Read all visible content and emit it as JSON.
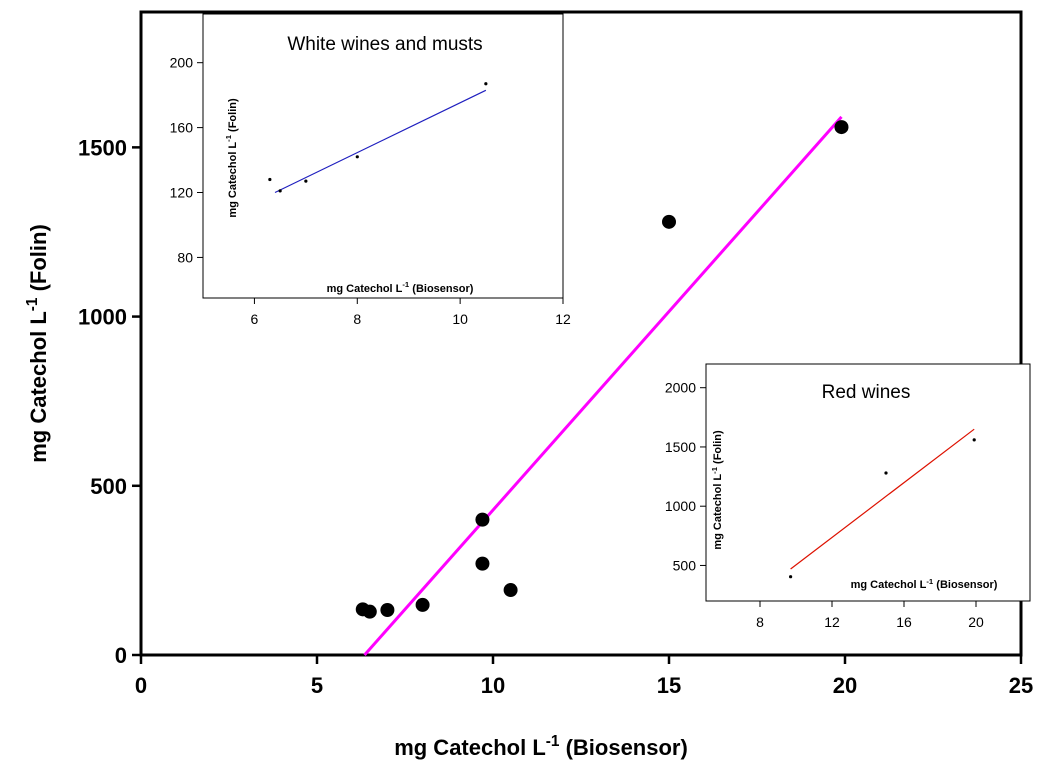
{
  "chart_data": [
    {
      "name": "main",
      "type": "scatter",
      "xlabel": {
        "pre": "mg Catechol L",
        "sup": "-1",
        "post": " (Biosensor)"
      },
      "ylabel": {
        "pre": "mg Catechol L",
        "sup": "-1",
        "post": " (Folin)"
      },
      "xlim": [
        0,
        25
      ],
      "ylim": [
        0,
        1900
      ],
      "xticks": [
        0,
        5,
        10,
        15,
        20,
        25
      ],
      "yticks": [
        0,
        500,
        1000,
        1500
      ],
      "points": [
        {
          "x": 6.3,
          "y": 135
        },
        {
          "x": 6.5,
          "y": 128
        },
        {
          "x": 7.0,
          "y": 133
        },
        {
          "x": 8.0,
          "y": 148
        },
        {
          "x": 9.7,
          "y": 270
        },
        {
          "x": 9.7,
          "y": 400
        },
        {
          "x": 10.5,
          "y": 192
        },
        {
          "x": 15.0,
          "y": 1280
        },
        {
          "x": 19.9,
          "y": 1560
        }
      ],
      "fit_line": {
        "x": [
          6.35,
          19.9
        ],
        "y": [
          0,
          1590
        ],
        "color": "#ff00ff"
      },
      "marker_color": "#000000"
    },
    {
      "name": "white-inset",
      "type": "scatter",
      "title": "White wines and musts",
      "xlabel": {
        "pre": "mg Catechol L",
        "sup": "-1",
        "post": " (Biosensor)"
      },
      "ylabel": {
        "pre": "mg Catechol L",
        "sup": "-1",
        "post": " (Folin)"
      },
      "xlim": [
        5,
        12
      ],
      "ylim": [
        55,
        230
      ],
      "xticks": [
        6,
        8,
        10,
        12
      ],
      "yticks": [
        80,
        120,
        160,
        200
      ],
      "points": [
        {
          "x": 6.3,
          "y": 128
        },
        {
          "x": 6.5,
          "y": 121
        },
        {
          "x": 7.0,
          "y": 127
        },
        {
          "x": 8.0,
          "y": 142
        },
        {
          "x": 10.5,
          "y": 187
        }
      ],
      "fit_line": {
        "x": [
          6.4,
          10.5
        ],
        "y": [
          120,
          183
        ],
        "color": "#1f1fbf"
      }
    },
    {
      "name": "red-inset",
      "type": "scatter",
      "title": "Red wines",
      "xlabel": {
        "pre": "mg Catechol L",
        "sup": "-1",
        "post": " (Biosensor)"
      },
      "ylabel": {
        "pre": "mg Catechol L",
        "sup": "-1",
        "post": " (Folin)"
      },
      "xlim": [
        5,
        23
      ],
      "ylim": [
        200,
        2200
      ],
      "xticks": [
        8,
        12,
        16,
        20
      ],
      "yticks": [
        500,
        1000,
        1500,
        2000
      ],
      "points": [
        {
          "x": 9.7,
          "y": 405
        },
        {
          "x": 15.0,
          "y": 1280
        },
        {
          "x": 19.9,
          "y": 1560
        }
      ],
      "fit_line": {
        "x": [
          9.7,
          19.9
        ],
        "y": [
          470,
          1650
        ],
        "color": "#dd1100"
      }
    }
  ]
}
